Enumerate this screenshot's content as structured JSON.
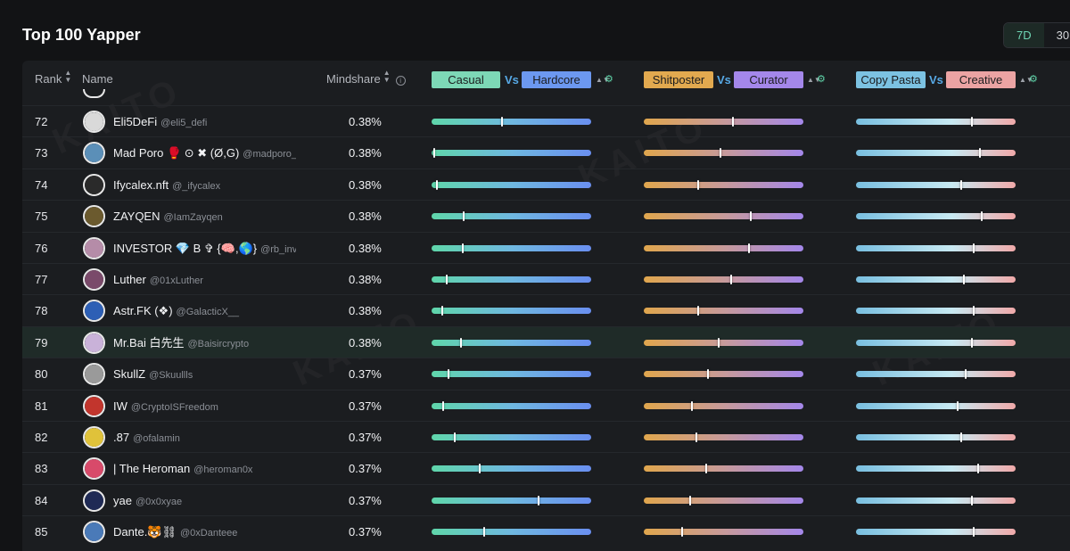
{
  "page": {
    "title": "Top 100 Yapper",
    "range": {
      "options": [
        "7D",
        "30"
      ],
      "selected": "7D"
    },
    "watermark": "KAITO"
  },
  "columns": {
    "rank": "Rank",
    "name": "Name",
    "mindshare": "Mindshare",
    "pair1": {
      "left": "Casual",
      "vs": "Vs",
      "right": "Hardcore"
    },
    "pair2": {
      "left": "Shitposter",
      "vs": "Vs",
      "right": "Curator"
    },
    "pair3": {
      "left": "Copy Pasta",
      "vs": "Vs",
      "right": "Creative"
    }
  },
  "colors": {
    "casual": "#7dd8b6",
    "hardcore": "#6c98f0",
    "shitposter": "#e2a94f",
    "curator": "#a487ea",
    "copypasta": "#7cc2e2",
    "creative": "#eba3a3",
    "vs": "#57a9e6",
    "accent": "#5fd3a8"
  },
  "rows": [
    {
      "rank": "72",
      "name": "Eli5DeFi",
      "handle": "@eli5_defi",
      "mindshare": "0.38%",
      "casual": 0.44,
      "shitposter": 0.56,
      "copypasta": 0.73,
      "avatar_color": "#d9d9d9",
      "highlight": false
    },
    {
      "rank": "73",
      "name": "Mad Poro 🥊 ⊙ ✖ (Ø,G)",
      "handle": "@madporo_",
      "mindshare": "0.38%",
      "casual": 0.01,
      "shitposter": 0.48,
      "copypasta": 0.78,
      "avatar_color": "#5b8fb8",
      "highlight": false
    },
    {
      "rank": "74",
      "name": "Ifycalex.nft",
      "handle": "@_ifycalex",
      "mindshare": "0.38%",
      "casual": 0.03,
      "shitposter": 0.34,
      "copypasta": 0.66,
      "avatar_color": "#2a2a2a",
      "highlight": false
    },
    {
      "rank": "75",
      "name": "ZAYQEN",
      "handle": "@IamZayqen",
      "mindshare": "0.38%",
      "casual": 0.2,
      "shitposter": 0.67,
      "copypasta": 0.79,
      "avatar_color": "#6b5a2e",
      "highlight": false
    },
    {
      "rank": "76",
      "name": "INVESTOR 💎 B ✞ {🧠,🌎}",
      "handle": "@rb_inv...",
      "mindshare": "0.38%",
      "casual": 0.19,
      "shitposter": 0.66,
      "copypasta": 0.74,
      "avatar_color": "#b58ca8",
      "highlight": false
    },
    {
      "rank": "77",
      "name": "Luther",
      "handle": "@01xLuther",
      "mindshare": "0.38%",
      "casual": 0.09,
      "shitposter": 0.55,
      "copypasta": 0.68,
      "avatar_color": "#7a4a6a",
      "highlight": false
    },
    {
      "rank": "78",
      "name": "Astr.FK (❖)",
      "handle": "@GalacticX__",
      "mindshare": "0.38%",
      "casual": 0.06,
      "shitposter": 0.34,
      "copypasta": 0.74,
      "avatar_color": "#2d5fb5",
      "highlight": false
    },
    {
      "rank": "79",
      "name": "Mr.Bai 白先生",
      "handle": "@Baisircrypto",
      "mindshare": "0.38%",
      "casual": 0.18,
      "shitposter": 0.47,
      "copypasta": 0.73,
      "avatar_color": "#c9b2d9",
      "highlight": true
    },
    {
      "rank": "80",
      "name": "SkullZ",
      "handle": "@Skuullls",
      "mindshare": "0.37%",
      "casual": 0.1,
      "shitposter": 0.4,
      "copypasta": 0.69,
      "avatar_color": "#9a9a9a",
      "highlight": false
    },
    {
      "rank": "81",
      "name": "IW",
      "handle": "@CryptoISFreedom",
      "mindshare": "0.37%",
      "casual": 0.07,
      "shitposter": 0.3,
      "copypasta": 0.64,
      "avatar_color": "#c2352d",
      "highlight": false
    },
    {
      "rank": "82",
      "name": ".87",
      "handle": "@ofalamin",
      "mindshare": "0.37%",
      "casual": 0.14,
      "shitposter": 0.33,
      "copypasta": 0.66,
      "avatar_color": "#e0c23a",
      "highlight": false
    },
    {
      "rank": "83",
      "name": "| The Heroman",
      "handle": "@heroman0x",
      "mindshare": "0.37%",
      "casual": 0.3,
      "shitposter": 0.39,
      "copypasta": 0.77,
      "avatar_color": "#d84a6a",
      "highlight": false
    },
    {
      "rank": "84",
      "name": "yae",
      "handle": "@0x0xyae",
      "mindshare": "0.37%",
      "casual": 0.67,
      "shitposter": 0.29,
      "copypasta": 0.73,
      "avatar_color": "#1f2a55",
      "highlight": false
    },
    {
      "rank": "85",
      "name": "Dante.🐯⛓",
      "handle": "@0xDanteee",
      "mindshare": "0.37%",
      "casual": 0.33,
      "shitposter": 0.24,
      "copypasta": 0.74,
      "avatar_color": "#4a7ab8",
      "highlight": false
    }
  ]
}
